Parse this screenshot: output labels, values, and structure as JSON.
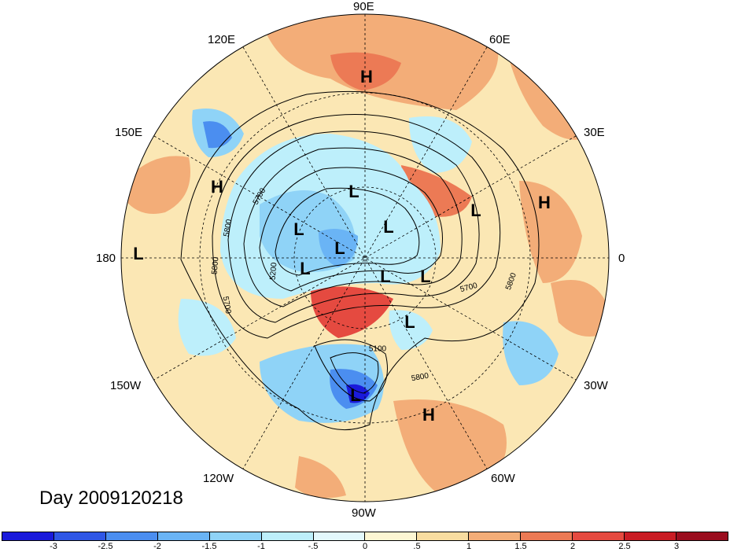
{
  "map": {
    "title": "Day 2009120218",
    "longitude_labels": {
      "top": "90E",
      "upper_left": "120E",
      "upper_right": "60E",
      "left_upper": "150E",
      "right_upper": "30E",
      "left": "180",
      "right": "0",
      "left_lower": "150W",
      "right_lower": "30W",
      "lower_left": "120W",
      "lower_right": "60W",
      "bottom": "90W"
    },
    "pressure_centers": [
      "H",
      "H",
      "H",
      "H",
      "L",
      "L",
      "L",
      "L",
      "L",
      "L",
      "L",
      "L",
      "L",
      "L",
      "L"
    ],
    "contour_labels": [
      "5700",
      "5800",
      "5800",
      "5200",
      "5700",
      "5700",
      "5800",
      "5700",
      "5800",
      "5100"
    ],
    "colorbar": {
      "ticks": [
        "-3",
        "-2.5",
        "-2",
        "-1.5",
        "-1",
        "-.5",
        "0",
        ".5",
        "1",
        "1.5",
        "2",
        "2.5",
        "3"
      ],
      "colors": [
        "#1a1adb",
        "#2f57e6",
        "#4b8ef0",
        "#6ab4f5",
        "#8fd3f7",
        "#bdeffb",
        "#e3f8fc",
        "#fdf6d3",
        "#f8dca0",
        "#f3ad78",
        "#ec7a55",
        "#e54a40",
        "#c91c24",
        "#9a0d1e"
      ]
    }
  }
}
